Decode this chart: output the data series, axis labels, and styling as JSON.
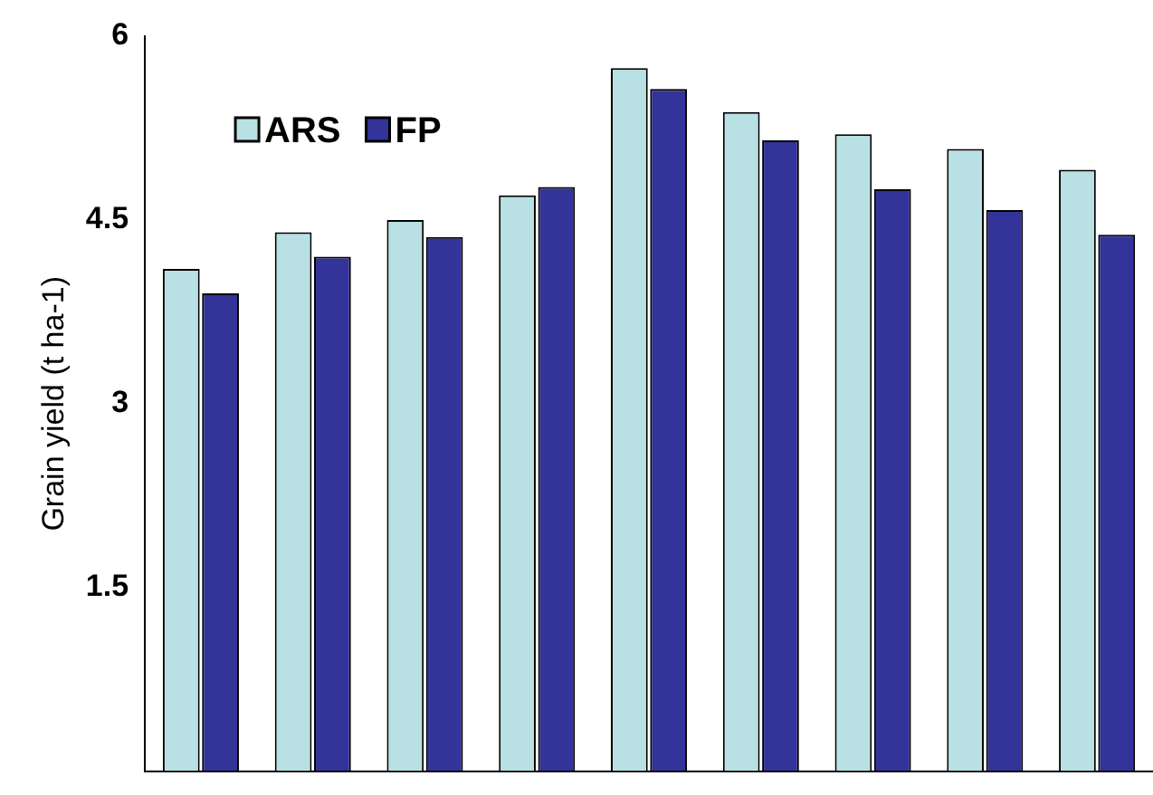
{
  "chart_data": {
    "type": "bar",
    "ylabel": "Grain yield (t ha-1)",
    "categories": [
      null,
      null,
      null,
      null,
      null,
      null,
      null,
      null,
      null
    ],
    "series": [
      {
        "name": "ARS",
        "color": "#b9e0e3",
        "values": [
          4.1,
          4.4,
          4.5,
          4.7,
          5.74,
          5.38,
          5.2,
          5.08,
          4.91
        ]
      },
      {
        "name": "FP",
        "color": "#333399",
        "values": [
          3.9,
          4.2,
          4.36,
          4.77,
          5.57,
          5.15,
          4.75,
          4.58,
          4.38
        ]
      }
    ],
    "ylim": [
      0,
      6
    ],
    "yticks": [
      1.5,
      3,
      4.5,
      6
    ],
    "grid": false,
    "legend": "top left"
  }
}
